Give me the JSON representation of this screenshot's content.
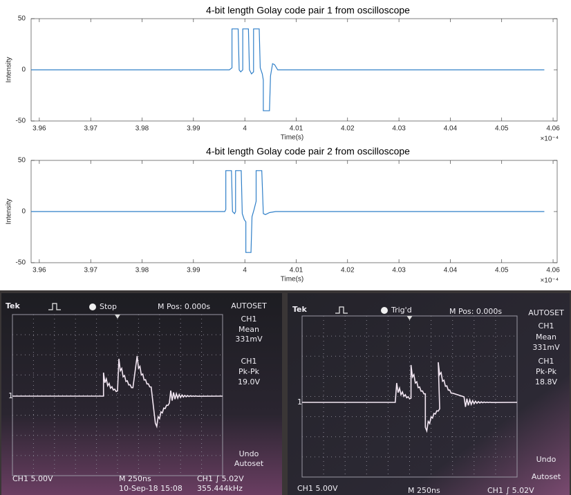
{
  "chart_data": [
    {
      "type": "line",
      "title": "4-bit length Golay code pair 1 from oscilloscope",
      "x_label": "Time(s)",
      "y_label": "Intensity",
      "x_exponent_label": "×10⁻⁴",
      "color": "#2f7fc8",
      "x": [
        3.9584,
        3.997,
        3.9975,
        3.9975,
        3.9987,
        3.9989,
        3.9992,
        3.9996,
        3.9996,
        4.0007,
        4.0009,
        4.0013,
        4.0017,
        4.0017,
        4.0028,
        4.003,
        4.0034,
        4.0036,
        4.0036,
        4.0048,
        4.005,
        4.0054,
        4.0058,
        4.0064,
        4.0583
      ],
      "values": [
        0,
        0,
        2,
        40,
        40,
        0,
        -2,
        0,
        40,
        40,
        0,
        -4,
        -2,
        40,
        40,
        2,
        -4,
        -10,
        -40,
        -40,
        -6,
        6,
        5,
        0,
        0
      ],
      "xlim": [
        3.9584,
        4.0608
      ],
      "xticks": [
        3.96,
        3.97,
        3.98,
        3.99,
        4,
        4.01,
        4.02,
        4.03,
        4.04,
        4.05,
        4.06
      ],
      "ylim": [
        -50,
        50
      ],
      "yticks": [
        -50,
        0,
        50
      ]
    },
    {
      "type": "line",
      "title": "4-bit length Golay code pair 2 from oscilloscope",
      "x_label": "Time(s)",
      "y_label": "Intensity",
      "x_exponent_label": "×10⁻⁴",
      "color": "#2f7fc8",
      "x": [
        3.9584,
        3.9961,
        3.9963,
        3.9963,
        3.9974,
        3.9976,
        3.998,
        3.9982,
        3.9982,
        3.9993,
        3.9995,
        3.9999,
        4.0002,
        4.0002,
        4.0012,
        4.0014,
        4.0018,
        4.0022,
        4.0022,
        4.0033,
        4.0036,
        4.004,
        4.0048,
        4.006,
        4.0583
      ],
      "values": [
        0,
        0,
        2,
        40,
        40,
        0,
        -2,
        0,
        40,
        40,
        -2,
        -8,
        -10,
        -40,
        -40,
        -5,
        2,
        10,
        40,
        40,
        -2,
        -3,
        -1,
        0,
        0
      ],
      "xlim": [
        3.9584,
        4.0608
      ],
      "xticks": [
        3.96,
        3.97,
        3.98,
        3.99,
        4,
        4.01,
        4.02,
        4.03,
        4.04,
        4.05,
        4.06
      ],
      "ylim": [
        -50,
        50
      ],
      "yticks": [
        -50,
        0,
        50
      ]
    }
  ],
  "oscilloscopes": [
    {
      "brand": "Tek",
      "status": "Stop",
      "position": "M Pos: 0.000s",
      "marker": "1",
      "menu": [
        "AUTOSET",
        "CH1",
        "Mean",
        "331mV",
        "CH1",
        "Pk-Pk",
        "19.0V",
        "Undo",
        "Autoset"
      ],
      "channel": "CH1  5.00V",
      "timebase": "M 250ns",
      "trigger": "CH1 ∫ 5.02V",
      "date": "10-Sep-18 15:08",
      "frequency": "355.444kHz"
    },
    {
      "brand": "Tek",
      "status": "Trig'd",
      "position": "M Pos: 0.000s",
      "marker": "1",
      "menu": [
        "AUTOSET",
        "CH1",
        "Mean",
        "331mV",
        "CH1",
        "Pk-Pk",
        "18.8V",
        "Undo",
        "Autoset"
      ],
      "channel": "CH1  5.00V",
      "timebase": "M 250ns",
      "trigger": "CH1 ∫ 5.02V"
    }
  ]
}
